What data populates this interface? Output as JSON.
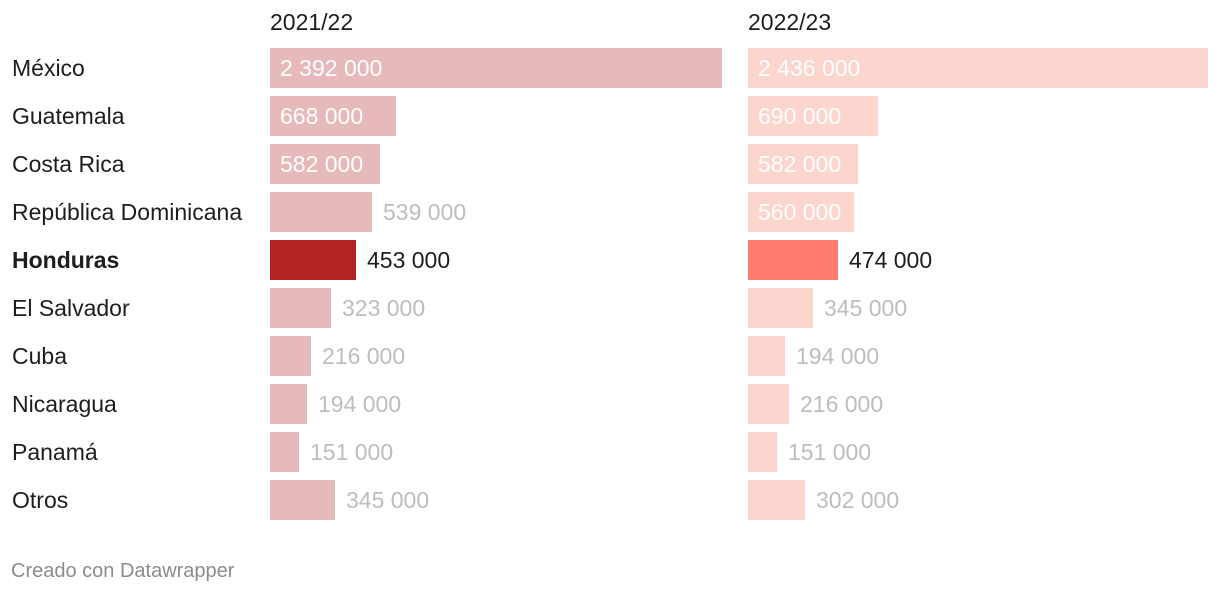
{
  "chart_data": {
    "type": "bar",
    "orientation": "horizontal",
    "categories": [
      "México",
      "Guatemala",
      "Costa Rica",
      "República Dominicana",
      "Honduras",
      "El Salvador",
      "Cuba",
      "Nicaragua",
      "Panamá",
      "Otros"
    ],
    "highlight": "Honduras",
    "series": [
      {
        "name": "2021/22",
        "values": [
          2392000,
          668000,
          582000,
          539000,
          453000,
          323000,
          216000,
          194000,
          151000,
          345000
        ],
        "labels": [
          "2 392 000",
          "668 000",
          "582 000",
          "539 000",
          "453 000",
          "323 000",
          "216 000",
          "194 000",
          "151 000",
          "345 000"
        ],
        "color": "#e6babb",
        "highlight_color": "#b32424"
      },
      {
        "name": "2022/23",
        "values": [
          2436000,
          690000,
          582000,
          560000,
          474000,
          345000,
          194000,
          216000,
          151000,
          302000
        ],
        "labels": [
          "2 436 000",
          "690 000",
          "582 000",
          "560 000",
          "474 000",
          "345 000",
          "194 000",
          "216 000",
          "151 000",
          "302 000"
        ],
        "color": "#fdd5cf",
        "highlight_color": "#ff7b6d"
      }
    ],
    "xlim": [
      0,
      2436000
    ]
  },
  "footer": "Creado con Datawrapper"
}
